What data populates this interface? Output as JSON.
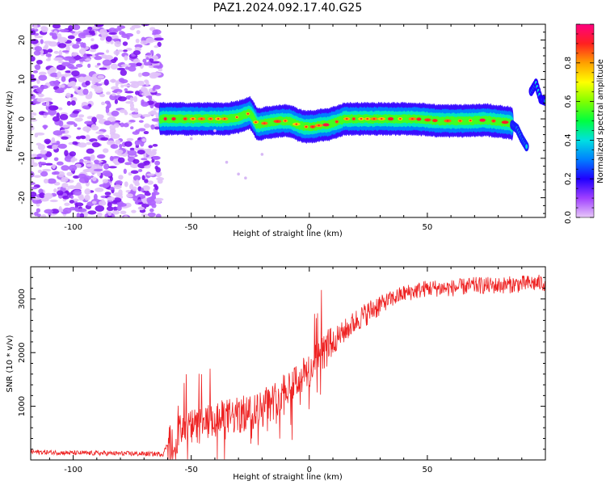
{
  "title": "PAZ1.2024.092.17.40.G25",
  "colors": {
    "snr_line": "#ee2222",
    "axis": "#000000",
    "background": "#ffffff"
  },
  "chart_data": [
    {
      "type": "heatmap",
      "xlabel": "Height of straight line (km)",
      "ylabel": "Frequency (Hz)",
      "xlim": [
        -118,
        100
      ],
      "ylim": [
        -25,
        24
      ],
      "xticks": [
        -100,
        -50,
        0,
        50
      ],
      "yticks": [
        -20,
        -10,
        0,
        10,
        20
      ],
      "noise_region_x": [
        -118,
        -63
      ],
      "signal_trace": {
        "x": [
          -63,
          -55,
          -45,
          -35,
          -30,
          -25,
          -22,
          -18,
          -12,
          -8,
          -5,
          -2,
          2,
          5,
          8,
          15,
          25,
          35,
          40,
          45,
          55,
          65,
          75,
          85,
          88,
          90,
          92,
          94,
          96,
          98,
          100
        ],
        "y": [
          0,
          0,
          0,
          0,
          0.5,
          1.5,
          -1.5,
          -1.0,
          -0.5,
          -0.5,
          -1.5,
          -2.0,
          -2.0,
          -1.5,
          -1.5,
          0,
          0,
          0,
          0,
          0,
          -0.5,
          -0.5,
          -0.3,
          -1.0,
          -2.5,
          -5.0,
          -7.0,
          7.0,
          9.0,
          5.0,
          4.5
        ]
      },
      "colorbar": {
        "label": "Normalized spectral amplitude",
        "range": [
          0,
          1
        ],
        "ticks": [
          "0.0",
          "0.2",
          "0.4",
          "0.6",
          "0.8"
        ]
      }
    },
    {
      "type": "line",
      "xlabel": "Height of straight line (km)",
      "ylabel": "SNR (10 * v/v)",
      "xlim": [
        -118,
        100
      ],
      "ylim": [
        0,
        3600
      ],
      "xticks": [
        -100,
        -50,
        0,
        50
      ],
      "yticks": [
        1000,
        2000,
        3000
      ],
      "series": [
        {
          "x": [
            -118,
            -100,
            -80,
            -62,
            -60,
            -55,
            -50,
            -45,
            -40,
            -35,
            -30,
            -25,
            -20,
            -15,
            -10,
            -5,
            0,
            5,
            10,
            15,
            20,
            30,
            40,
            45,
            50,
            60,
            70,
            80,
            90,
            100
          ],
          "y": [
            150,
            130,
            120,
            110,
            300,
            500,
            600,
            650,
            720,
            800,
            820,
            900,
            950,
            1100,
            1350,
            1500,
            1650,
            1950,
            2200,
            2400,
            2600,
            2900,
            3100,
            3150,
            3200,
            3200,
            3250,
            3250,
            3280,
            3300
          ]
        }
      ]
    }
  ]
}
